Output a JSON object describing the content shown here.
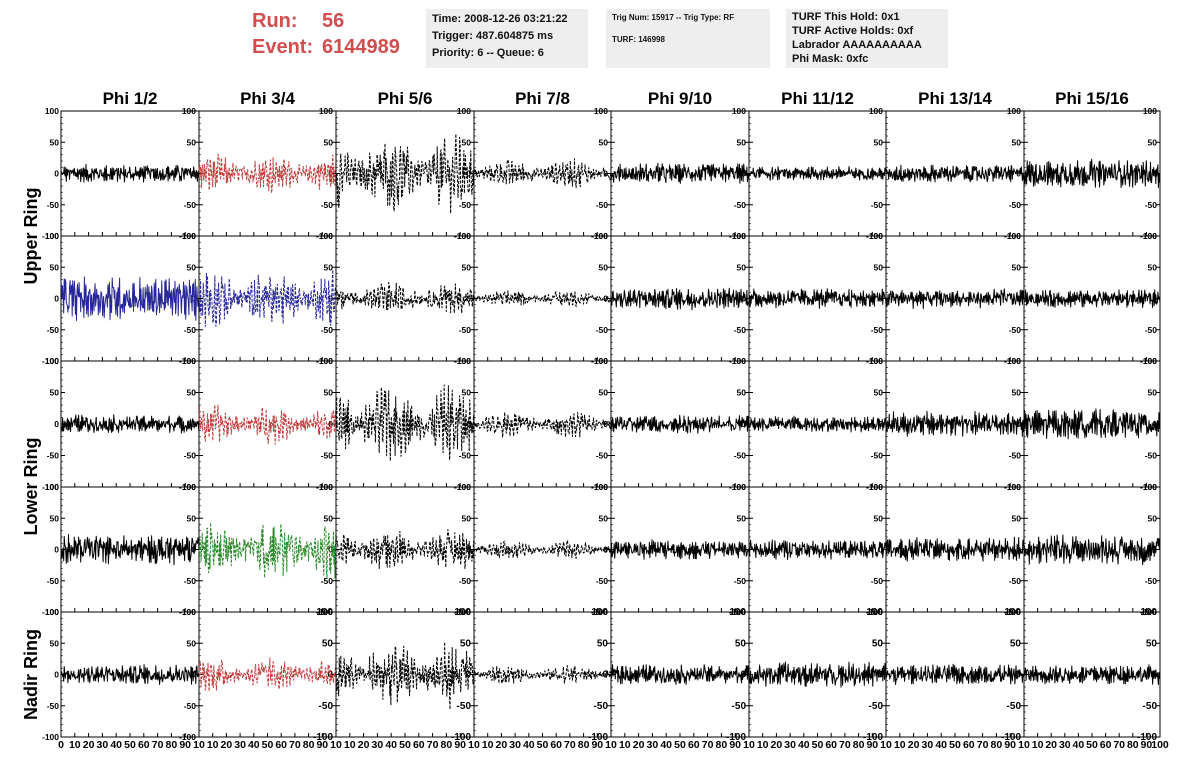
{
  "header": {
    "run_label": "Run:",
    "run_value": "56",
    "event_label": "Event:",
    "event_value": "6144989",
    "time": "Time: 2008-12-26 03:21:22",
    "trigger": "Trigger: 487.604875 ms",
    "priority_queue": "Priority: 6 -- Queue: 6",
    "trig_num_type": "Trig Num: 15917 -- Trig Type: RF",
    "turf": "TURF: 146998",
    "turf_this_hold": "TURF This Hold: 0x1",
    "turf_active_holds": "TURF Active Holds: 0xf",
    "labrador": "Labrador AAAAAAAAAA",
    "phi_mask": "Phi Mask: 0xfc"
  },
  "colors": {
    "run_text": "#d24d4d",
    "info_bg": "#eeeeee",
    "trace_black": "#000000",
    "trace_red": "#c23b3b",
    "trace_blue": "#27279a",
    "trace_green": "#2a8a2a"
  },
  "chart_data": {
    "type": "line",
    "column_titles": [
      "Phi 1/2",
      "Phi 3/4",
      "Phi 5/6",
      "Phi 7/8",
      "Phi 9/10",
      "Phi 11/12",
      "Phi 13/14",
      "Phi 15/16"
    ],
    "row_labels": [
      {
        "text": "Upper Ring",
        "rows": [
          0,
          1
        ]
      },
      {
        "text": "Lower Ring",
        "rows": [
          2,
          3
        ]
      },
      {
        "text": "Nadir Ring",
        "rows": [
          4
        ]
      }
    ],
    "xlim": [
      0,
      100
    ],
    "ylim": [
      -100,
      100
    ],
    "y_ticks": [
      100,
      50,
      0,
      -50,
      -100
    ],
    "x_ticks": [
      0,
      10,
      20,
      30,
      40,
      50,
      60,
      70,
      80,
      90,
      100
    ],
    "x_tick_labels_first_column": [
      "0",
      "10",
      "20",
      "30",
      "40",
      "50",
      "60",
      "70",
      "80",
      "90",
      "10"
    ],
    "x_tick_labels_middle_columns": [
      "10",
      "20",
      "30",
      "40",
      "50",
      "60",
      "70",
      "80",
      "90",
      "10"
    ],
    "x_tick_labels_last_column": [
      "10",
      "20",
      "30",
      "40",
      "50",
      "60",
      "70",
      "80",
      "90",
      "100"
    ],
    "panels_note": "amp = approximate peak amplitude in ADC units; style solid or dashed",
    "panels": [
      [
        {
          "color": "black",
          "amp": 18,
          "style": "solid"
        },
        {
          "color": "red",
          "amp": 42,
          "style": "dashed"
        },
        {
          "color": "black",
          "amp": 80,
          "style": "dashed"
        },
        {
          "color": "black",
          "amp": 30,
          "style": "dashed"
        },
        {
          "color": "black",
          "amp": 20,
          "style": "solid"
        },
        {
          "color": "black",
          "amp": 14,
          "style": "solid"
        },
        {
          "color": "black",
          "amp": 18,
          "style": "solid"
        },
        {
          "color": "black",
          "amp": 28,
          "style": "solid"
        }
      ],
      [
        {
          "color": "blue",
          "amp": 45,
          "style": "solid"
        },
        {
          "color": "blue",
          "amp": 65,
          "style": "dashed"
        },
        {
          "color": "black",
          "amp": 35,
          "style": "dashed"
        },
        {
          "color": "black",
          "amp": 18,
          "style": "dashed"
        },
        {
          "color": "black",
          "amp": 22,
          "style": "solid"
        },
        {
          "color": "black",
          "amp": 20,
          "style": "solid"
        },
        {
          "color": "black",
          "amp": 20,
          "style": "solid"
        },
        {
          "color": "black",
          "amp": 18,
          "style": "solid"
        }
      ],
      [
        {
          "color": "black",
          "amp": 18,
          "style": "solid"
        },
        {
          "color": "red",
          "amp": 40,
          "style": "dashed"
        },
        {
          "color": "black",
          "amp": 85,
          "style": "dashed"
        },
        {
          "color": "black",
          "amp": 28,
          "style": "dashed"
        },
        {
          "color": "black",
          "amp": 18,
          "style": "solid"
        },
        {
          "color": "black",
          "amp": 16,
          "style": "solid"
        },
        {
          "color": "black",
          "amp": 25,
          "style": "solid"
        },
        {
          "color": "black",
          "amp": 30,
          "style": "solid"
        }
      ],
      [
        {
          "color": "black",
          "amp": 30,
          "style": "solid"
        },
        {
          "color": "green",
          "amp": 65,
          "style": "dashed"
        },
        {
          "color": "black",
          "amp": 45,
          "style": "dashed"
        },
        {
          "color": "black",
          "amp": 20,
          "style": "dashed"
        },
        {
          "color": "black",
          "amp": 20,
          "style": "solid"
        },
        {
          "color": "black",
          "amp": 20,
          "style": "solid"
        },
        {
          "color": "black",
          "amp": 25,
          "style": "solid"
        },
        {
          "color": "black",
          "amp": 30,
          "style": "solid"
        }
      ],
      [
        {
          "color": "black",
          "amp": 20,
          "style": "solid"
        },
        {
          "color": "red",
          "amp": 35,
          "style": "dashed"
        },
        {
          "color": "black",
          "amp": 70,
          "style": "dashed"
        },
        {
          "color": "black",
          "amp": 20,
          "style": "dashed"
        },
        {
          "color": "black",
          "amp": 20,
          "style": "solid"
        },
        {
          "color": "black",
          "amp": 25,
          "style": "solid"
        },
        {
          "color": "black",
          "amp": 20,
          "style": "solid"
        },
        {
          "color": "black",
          "amp": 20,
          "style": "solid"
        }
      ]
    ]
  }
}
